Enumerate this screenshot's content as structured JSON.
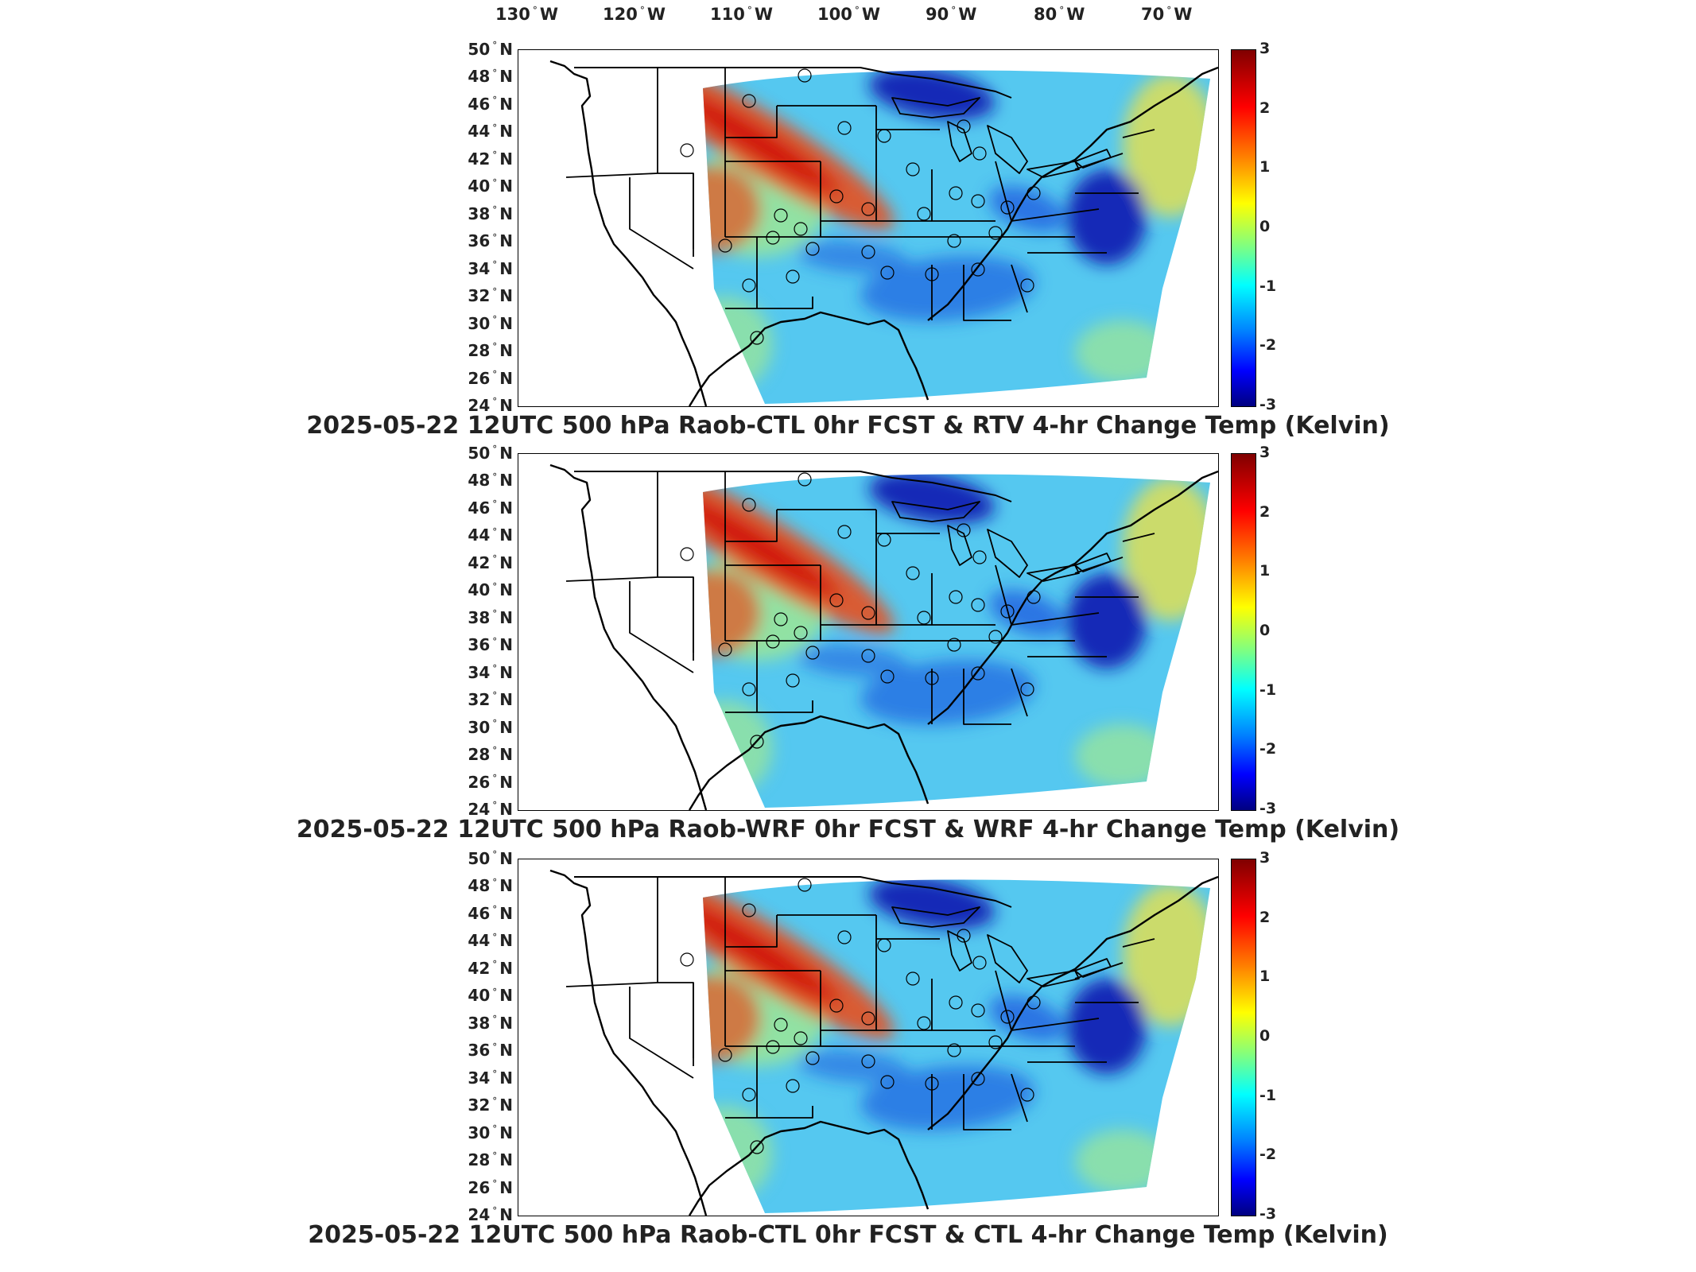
{
  "longitude_labels": [
    {
      "value": "130",
      "suffix": "W"
    },
    {
      "value": "120",
      "suffix": "W"
    },
    {
      "value": "110",
      "suffix": "W"
    },
    {
      "value": "100",
      "suffix": "W"
    },
    {
      "value": "90",
      "suffix": "W"
    },
    {
      "value": "80",
      "suffix": "W"
    },
    {
      "value": "70",
      "suffix": "W"
    }
  ],
  "latitude_labels": [
    {
      "value": "50",
      "suffix": "N"
    },
    {
      "value": "48",
      "suffix": "N"
    },
    {
      "value": "46",
      "suffix": "N"
    },
    {
      "value": "44",
      "suffix": "N"
    },
    {
      "value": "42",
      "suffix": "N"
    },
    {
      "value": "40",
      "suffix": "N"
    },
    {
      "value": "38",
      "suffix": "N"
    },
    {
      "value": "36",
      "suffix": "N"
    },
    {
      "value": "34",
      "suffix": "N"
    },
    {
      "value": "32",
      "suffix": "N"
    },
    {
      "value": "30",
      "suffix": "N"
    },
    {
      "value": "28",
      "suffix": "N"
    },
    {
      "value": "26",
      "suffix": "N"
    },
    {
      "value": "24",
      "suffix": "N"
    }
  ],
  "colorbar": {
    "ticks": [
      "3",
      "2",
      "1",
      "0",
      "-1",
      "-2",
      "-3"
    ],
    "range": [
      -3,
      3
    ],
    "colormap": "jet",
    "colors": [
      "#800000",
      "#ff0000",
      "#ff8000",
      "#ffff00",
      "#80ff80",
      "#00ffff",
      "#0080ff",
      "#0000ff",
      "#000080"
    ]
  },
  "panels": [
    {
      "title": "2025-05-22 12UTC 500 hPa Raob-CTL 0hr FCST & RTV 4-hr Change Temp (Kelvin)"
    },
    {
      "title": "2025-05-22 12UTC 500 hPa Raob-WRF 0hr FCST & WRF 4-hr Change Temp (Kelvin)"
    },
    {
      "title": "2025-05-22 12UTC 500 hPa Raob-CTL 0hr FCST & CTL 4-hr Change Temp (Kelvin)"
    }
  ],
  "map_features": {
    "field_colors": {
      "warm_band": "#e8501c",
      "warm_core": "#d01010",
      "cold_core": "#0a1ab0",
      "cold_region": "#2060e0",
      "background": "#55c8f0",
      "neutral": "#a0e890",
      "yellow": "#e8e04a"
    },
    "stations_count_per_panel": 30
  }
}
